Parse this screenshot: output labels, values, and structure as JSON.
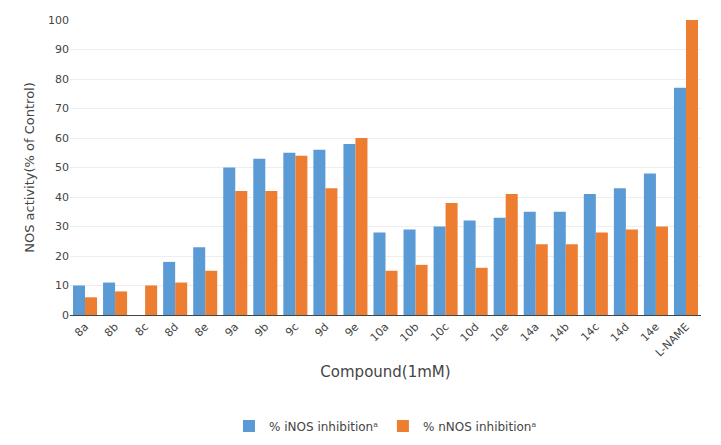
{
  "chart_data": {
    "type": "bar",
    "categories": [
      "8a",
      "8b",
      "8c",
      "8d",
      "8e",
      "9a",
      "9b",
      "9c",
      "9d",
      "9e",
      "10a",
      "10b",
      "10c",
      "10d",
      "10e",
      "14a",
      "14b",
      "14c",
      "14d",
      "14e",
      "L-NAME"
    ],
    "series": [
      {
        "name": "% iNOS inhibitionᵃ",
        "color": "#5B9BD5",
        "values": [
          10,
          11,
          0,
          18,
          23,
          50,
          53,
          55,
          56,
          58,
          28,
          29,
          30,
          32,
          33,
          35,
          35,
          41,
          43,
          48,
          77
        ]
      },
      {
        "name": "% nNOS inhibitionᵃ",
        "color": "#ED7D31",
        "values": [
          6,
          8,
          10,
          11,
          15,
          42,
          42,
          54,
          43,
          60,
          15,
          17,
          38,
          16,
          41,
          24,
          24,
          28,
          29,
          30,
          100
        ]
      }
    ],
    "xlabel": "Compound(1mM)",
    "ylabel": "NOS activity(% of Control)",
    "ylim": [
      0,
      100
    ],
    "yticks": [
      0,
      10,
      20,
      30,
      40,
      50,
      60,
      70,
      80,
      90,
      100
    ],
    "grid": true,
    "legend": "bottom"
  }
}
